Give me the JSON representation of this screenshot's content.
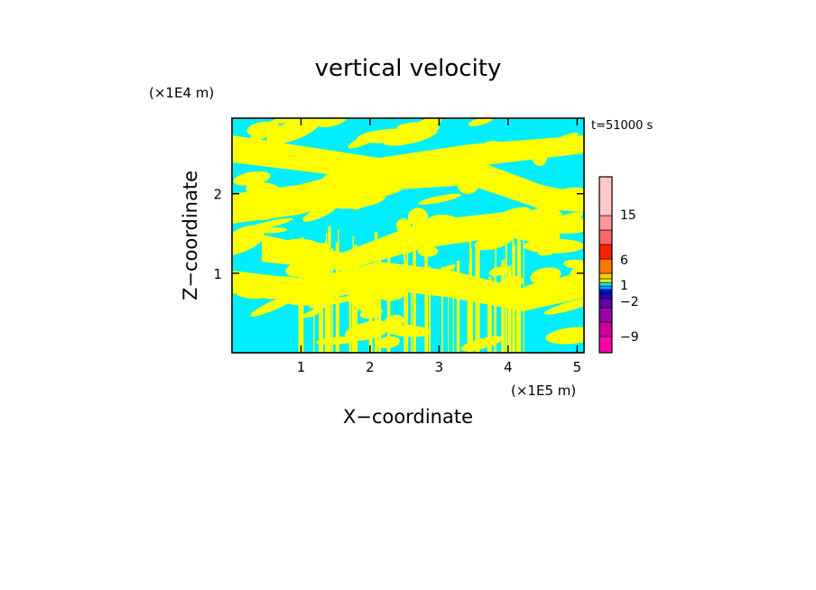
{
  "chart_data": {
    "type": "heatmap",
    "title": "vertical velocity",
    "xlabel": "X−coordinate",
    "ylabel": "Z−coordinate",
    "x_unit": "(×1E5 m)",
    "y_unit": "(×1E4 m)",
    "time_label": "t=51000 s",
    "xlim": [
      0,
      5.1
    ],
    "ylim": [
      0,
      2.95
    ],
    "x_ticks": [
      1,
      2,
      3,
      4,
      5
    ],
    "y_ticks": [
      1,
      2
    ],
    "x_tick_labels": [
      "1",
      "2",
      "3",
      "4",
      "5"
    ],
    "y_tick_labels": [
      "1",
      "2"
    ],
    "field_colors": {
      "positive": "#ffff00",
      "negative": "#00eeff"
    },
    "colorbar": {
      "labels": [
        "15",
        "6",
        "1",
        "−2",
        "−9"
      ],
      "levels": [
        -12,
        -9,
        -6,
        -4,
        -2,
        -1,
        0,
        1,
        2,
        4,
        6,
        9,
        12,
        15,
        20
      ],
      "colors": [
        "#ff00aa",
        "#cc0099",
        "#9900aa",
        "#6600aa",
        "#2200bb",
        "#0000ee",
        "#00a0ff",
        "#00eeff",
        "#ffff00",
        "#ffcc00",
        "#ff7700",
        "#ff2200",
        "#ff6666",
        "#ff9999",
        "#ffc8c8",
        "#fff0f0"
      ]
    }
  }
}
